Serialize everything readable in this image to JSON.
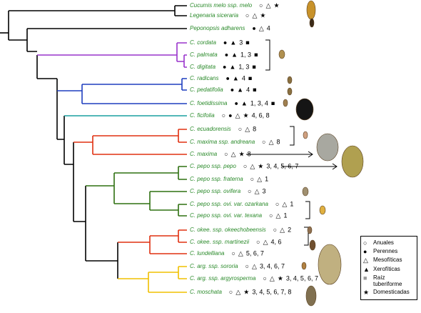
{
  "taxa": [
    {
      "name": "Cucumis melo ssp. melo",
      "traits": [
        "○",
        "△",
        "★"
      ]
    },
    {
      "name": "Legenaria siceraria",
      "traits": [
        "○",
        "△",
        "★"
      ]
    },
    {
      "name": "Peponopsis adharens",
      "traits": [
        "●",
        "△",
        "4"
      ]
    },
    {
      "name": "C. cordata",
      "traits": [
        "●",
        "▲",
        "3",
        "■"
      ]
    },
    {
      "name": "C. palmata",
      "traits": [
        "●",
        "▲",
        "1, 3",
        "■"
      ]
    },
    {
      "name": "C. digitata",
      "traits": [
        "●",
        "▲",
        "1, 3",
        "■"
      ]
    },
    {
      "name": "C. radicans",
      "traits": [
        "●",
        "▲",
        "4",
        "■"
      ]
    },
    {
      "name": "C. pedatifolia",
      "traits": [
        "●",
        "▲",
        "4",
        "■"
      ]
    },
    {
      "name": "C. foetidissima",
      "traits": [
        "●",
        "▲",
        "1, 3, 4",
        "■"
      ]
    },
    {
      "name": "C. ficifolia",
      "traits": [
        "○",
        "●",
        "△",
        "★",
        "4, 6, 8"
      ]
    },
    {
      "name": "C. ecuadorensis",
      "traits": [
        "○",
        "△",
        "8"
      ]
    },
    {
      "name": "C. maxima ssp. andreana",
      "traits": [
        "○",
        "△",
        "8"
      ]
    },
    {
      "name": "C. maxima",
      "traits": [
        "○",
        "△",
        "★",
        "8"
      ]
    },
    {
      "name": "C. pepo ssp. pepo",
      "traits": [
        "○",
        "△",
        "★",
        "3, 4, 5, 6, 7"
      ]
    },
    {
      "name": "C. pepo ssp. fraterna",
      "traits": [
        "○",
        "△",
        "1"
      ]
    },
    {
      "name": "C. pepo ssp. ovifera",
      "traits": [
        "○",
        "△",
        "3"
      ]
    },
    {
      "name": "C. pepo ssp. ovi. var. ozarkana",
      "traits": [
        "○",
        "△",
        "1"
      ]
    },
    {
      "name": "C. pepo ssp. ovi. var. texana",
      "traits": [
        "○",
        "△",
        "1"
      ]
    },
    {
      "name": "C. okee. ssp. okeechobeensis",
      "traits": [
        "○",
        "△",
        "2"
      ]
    },
    {
      "name": "C. okee. ssp. martinezii",
      "traits": [
        "○",
        "△",
        "4, 6"
      ]
    },
    {
      "name": "C. lundelliana",
      "traits": [
        "○",
        "△",
        "5, 6, 7"
      ]
    },
    {
      "name": "C. arg. ssp. sororia",
      "traits": [
        "○",
        "△",
        "3, 4, 6, 7"
      ]
    },
    {
      "name": "C. arg. ssp. argyrosperma",
      "traits": [
        "○",
        "△",
        "★",
        "3, 4, 5, 6, 7"
      ]
    },
    {
      "name": "C. moschata",
      "traits": [
        "○",
        "△",
        "★",
        "3, 4, 5, 6, 7, 8"
      ]
    }
  ],
  "legend": [
    {
      "symbol": "○",
      "label": "Anuales"
    },
    {
      "symbol": "●",
      "label": "Perennes"
    },
    {
      "symbol": "△",
      "label": "Mesofíticas"
    },
    {
      "symbol": "▲",
      "label": "Xerofíticas"
    },
    {
      "symbol": "■",
      "label": "Raíz tuberiforme"
    },
    {
      "symbol": "★",
      "label": "Domesticadas"
    }
  ]
}
